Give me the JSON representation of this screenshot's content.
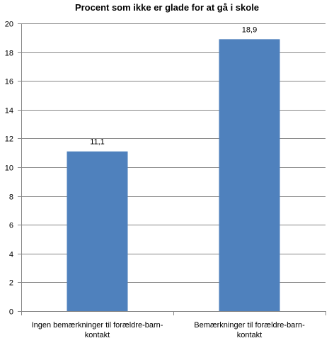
{
  "chart_data": {
    "type": "bar",
    "title": "Procent som ikke er glade for at gå i skole",
    "categories": [
      [
        "Ingen bemærkninger til forældre-barn-",
        "kontakt"
      ],
      [
        "Bemærkninger til forældre-barn-",
        "kontakt"
      ]
    ],
    "values": [
      11.1,
      18.9
    ],
    "data_labels": [
      "11,1",
      "18,9"
    ],
    "ylim": [
      0,
      20
    ],
    "yticks": [
      0,
      2,
      4,
      6,
      8,
      10,
      12,
      14,
      16,
      18,
      20
    ],
    "grid": true,
    "legend": "none",
    "bar_color": "#4F81BD",
    "grid_color": "#868686",
    "xlabel": "",
    "ylabel": ""
  }
}
